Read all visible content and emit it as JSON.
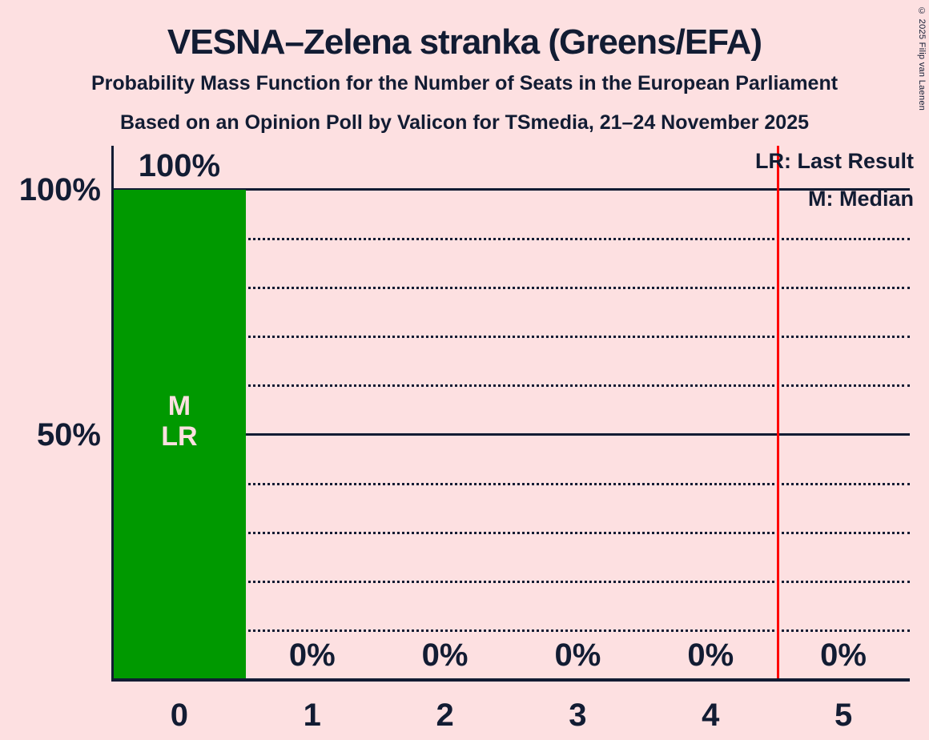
{
  "title": "VESNA–Zelena stranka (Greens/EFA)",
  "subtitle1": "Probability Mass Function for the Number of Seats in the European Parliament",
  "subtitle2": "Based on an Opinion Poll by Valicon for TSmedia, 21–24 November 2025",
  "copyright": "© 2025 Filip van Laenen",
  "legend": {
    "last_result": "LR: Last Result",
    "median": "M: Median"
  },
  "colors": {
    "background": "#FDE0E1",
    "text": "#121C33",
    "bar": "#009900",
    "red_line": "#FF0000",
    "bar_annotation_text": "#FDE0E1"
  },
  "chart_data": {
    "type": "bar",
    "title": "Probability Mass Function for the Number of Seats in the European Parliament",
    "xlabel": "",
    "ylabel": "",
    "categories": [
      "0",
      "1",
      "2",
      "3",
      "4",
      "5"
    ],
    "values": [
      100,
      0,
      0,
      0,
      0,
      0
    ],
    "bar_labels": [
      "100%",
      "0%",
      "0%",
      "0%",
      "0%",
      "0%"
    ],
    "ylim": [
      0,
      100
    ],
    "ytick_values": [
      50,
      100
    ],
    "ytick_labels": [
      "50%",
      "100%"
    ],
    "solid_gridlines": [
      50,
      100
    ],
    "dotted_gridlines": [
      10,
      20,
      30,
      40,
      60,
      70,
      80,
      90
    ],
    "grid": "horizontal, dotted minor every 10%, solid at 50% and 100%",
    "legend_position": "top-right",
    "median_seat": 0,
    "last_result_seat": 0,
    "bar_annotations": [
      "M",
      "LR"
    ],
    "red_vertical_line_at": 4.5
  }
}
